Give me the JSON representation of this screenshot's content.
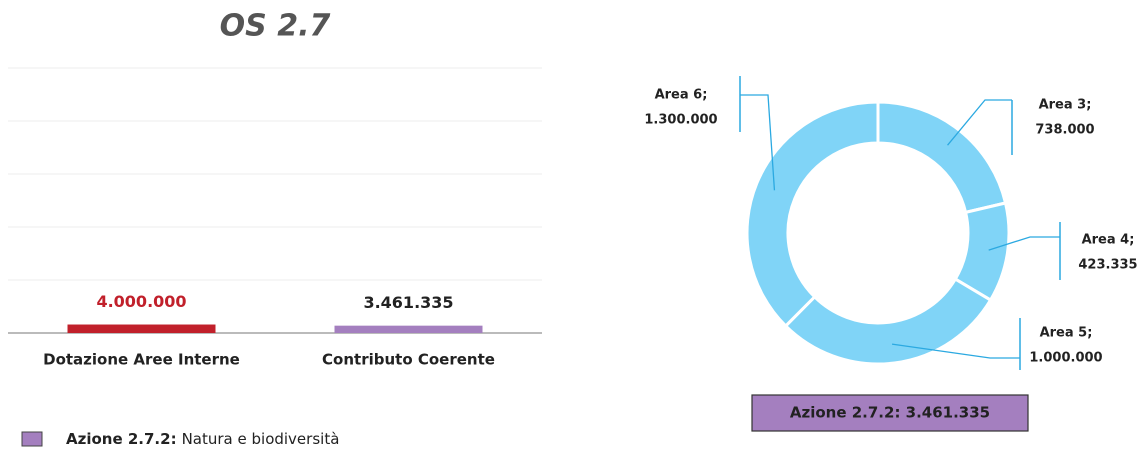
{
  "chart_data": [
    {
      "type": "bar",
      "title": "OS 2.7",
      "categories": [
        "Dotazione Aree Interne",
        "Contributo Coerente"
      ],
      "values": [
        4000000,
        3461335
      ],
      "value_labels": [
        "4.000.000",
        "3.461.335"
      ],
      "colors": [
        "#c1202b",
        "#a47fbf"
      ],
      "value_label_colors": [
        "#c1202b",
        "#222222"
      ],
      "ylim": [
        0,
        125000000
      ],
      "yticks": [
        0,
        25000000,
        50000000,
        75000000,
        100000000,
        125000000
      ],
      "grid": true,
      "legend": {
        "label": "Azione 2.7.2:",
        "text": "Natura e biodiversità",
        "color": "#a47fbf"
      }
    },
    {
      "type": "donut",
      "categories": [
        "Area 3;",
        "Area 4;",
        "Area 5;",
        "Area 6;"
      ],
      "values": [
        738000,
        423335,
        1000000,
        1300000
      ],
      "value_labels": [
        "738.000",
        "423.335",
        "1.000.000",
        "1.300.000"
      ],
      "color": "#80d4f7",
      "total_label": "Azione 2.7.2: 3.461.335",
      "total_color": "#a47fbf"
    }
  ]
}
